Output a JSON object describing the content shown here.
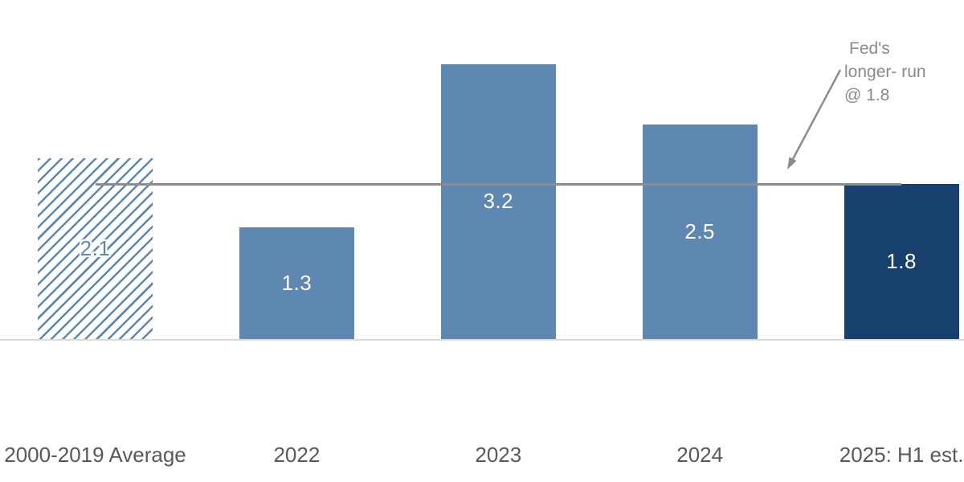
{
  "chart_data": {
    "type": "bar",
    "title": "",
    "categories": [
      "2000-2019 Average",
      "2022",
      "2023",
      "2024",
      "2025: H1 est."
    ],
    "values": [
      2.1,
      1.3,
      3.2,
      2.5,
      1.8
    ],
    "value_labels": [
      "2.1",
      "1.3",
      "3.2",
      "2.5",
      "1.8"
    ],
    "bar_styles": [
      "hatched",
      "solid",
      "solid",
      "solid",
      "dark"
    ],
    "ylim": [
      0,
      3.4
    ],
    "grid": "off",
    "legend": "none",
    "reference_line": {
      "value": 1.8,
      "label": "Fed's longer- run @ 1.8"
    }
  },
  "annotation": {
    "lines": [
      "Fed's",
      "longer- run",
      "@ 1.8"
    ]
  },
  "colors": {
    "bar-blue": "#5E87B2",
    "bar-navy": "#17406F",
    "ref-line": "#8C8C8C",
    "arrow": "#8C8C8C",
    "annotation-text": "#8A8A8A",
    "axis-text": "#595959",
    "value-text": "#FFFFFF",
    "baseline": "#D9D9D9",
    "background": "#FFFFFF"
  }
}
